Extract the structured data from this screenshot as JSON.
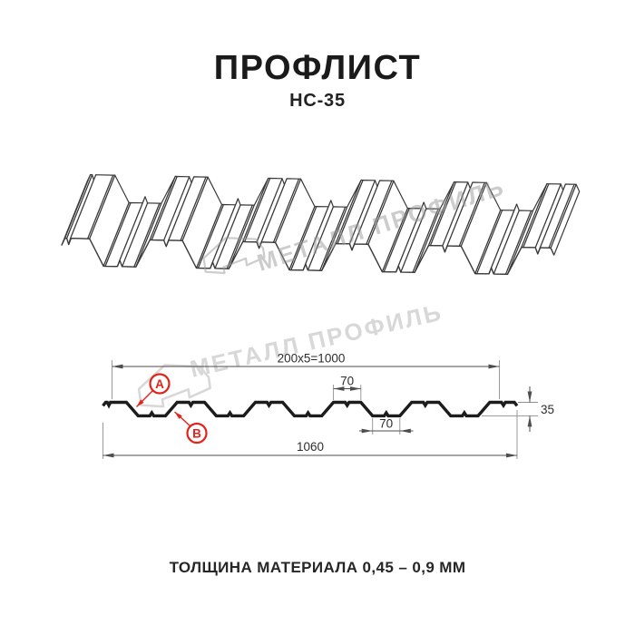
{
  "header": {
    "title": "ПРОФЛИСТ",
    "model": "НС-35"
  },
  "footer": {
    "note": "ТОЛЩИНА МАТЕРИАЛА 0,45 – 0,9 ММ"
  },
  "watermark": {
    "text": "МЕТАЛЛ ПРОФИЛЬ",
    "color": "#d8d8d8"
  },
  "drawing": {
    "line_color": "#3a3a3a",
    "section_color": "#1c1c1c",
    "dim_line_color": "#4d4d4d",
    "extension_line_color": "#8f8f8f",
    "accent_red": "#e2231a",
    "dims": {
      "working_width": "200x5=1000",
      "total_width": "1060",
      "crest_flat": "70",
      "valley_flat": "70",
      "height": "35"
    },
    "callouts": {
      "a": "А",
      "b": "В"
    },
    "profile_mm": {
      "total_width": 1060,
      "working_width": 1000,
      "period": 200,
      "crest_flat": 70,
      "valley_flat": 70,
      "height": 35
    }
  }
}
